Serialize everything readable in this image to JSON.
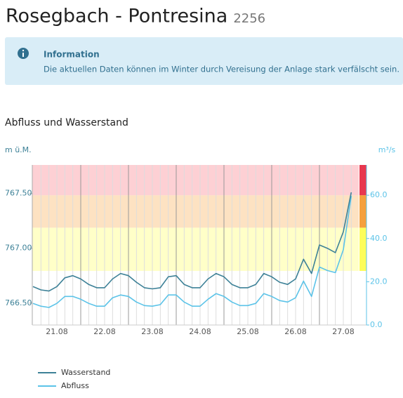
{
  "page": {
    "title": "Rosegbach - Pontresina",
    "station_id": "2256",
    "info_title": "Information",
    "info_text": "Die aktuellen Daten können im Winter durch Vereisung der Anlage stark verfälscht sein."
  },
  "chart_data": {
    "type": "line",
    "title": "Abfluss und Wasserstand",
    "y_label": "m ü.M.",
    "y2_label": "m³/s",
    "categories": [
      "21.08",
      "22.08",
      "23.08",
      "24.08",
      "25.08",
      "26.08",
      "27.08"
    ],
    "series": [
      {
        "name": "Wasserstand",
        "color": "#3d8197",
        "axis": "y",
        "values": [
          [
            766.65,
            766.62,
            766.61,
            766.65,
            766.73,
            766.75
          ],
          [
            766.72,
            766.67,
            766.64,
            766.64,
            766.72,
            766.77
          ],
          [
            766.75,
            766.69,
            766.64,
            766.63,
            766.64,
            766.74
          ],
          [
            766.75,
            766.67,
            766.64,
            766.64,
            766.72,
            766.77
          ],
          [
            766.74,
            766.67,
            766.64,
            766.64,
            766.67,
            766.77
          ],
          [
            766.74,
            766.69,
            766.67,
            766.72,
            766.9,
            766.77
          ],
          [
            767.03,
            767.0,
            766.96,
            767.15,
            767.51,
            null
          ]
        ]
      },
      {
        "name": "Abfluss",
        "color": "#5bc3e8",
        "axis": "y2",
        "values": [
          [
            10.0,
            8.7,
            8.1,
            10.0,
            13.2,
            13.2
          ],
          [
            11.9,
            10.0,
            8.7,
            8.7,
            12.6,
            13.9
          ],
          [
            13.2,
            10.6,
            9.0,
            8.7,
            9.4,
            13.9
          ],
          [
            13.9,
            10.6,
            8.7,
            8.7,
            11.9,
            14.5
          ],
          [
            13.2,
            10.6,
            9.0,
            9.0,
            10.0,
            14.5
          ],
          [
            13.2,
            11.3,
            10.6,
            12.6,
            20.3,
            13.2
          ],
          [
            26.8,
            25.2,
            24.2,
            34.8,
            59.7,
            null
          ]
        ]
      }
    ],
    "ylim": [
      766.3,
      767.76
    ],
    "yticks": [
      {
        "value": 766.5,
        "label": "766.50"
      },
      {
        "value": 767,
        "label": "767.00"
      },
      {
        "value": 767.5,
        "label": "767.50"
      }
    ],
    "y2lim": [
      0,
      74
    ],
    "y2ticks": [
      {
        "value": 0,
        "label": "0.0"
      },
      {
        "value": 20,
        "label": "20.0"
      },
      {
        "value": 40,
        "label": "40.0"
      },
      {
        "value": 60,
        "label": "60.0"
      }
    ],
    "bands": [
      {
        "from": 25,
        "to": 45,
        "color": "#ffffc8",
        "strip_color": "#fdfd5a"
      },
      {
        "from": 45,
        "to": 60,
        "color": "#fde2c2",
        "strip_color": "#f5a03c"
      },
      {
        "from": 60,
        "to": 74,
        "color": "#fdd0d4",
        "strip_color": "#e8384f"
      }
    ],
    "legend": "bottom-left"
  }
}
